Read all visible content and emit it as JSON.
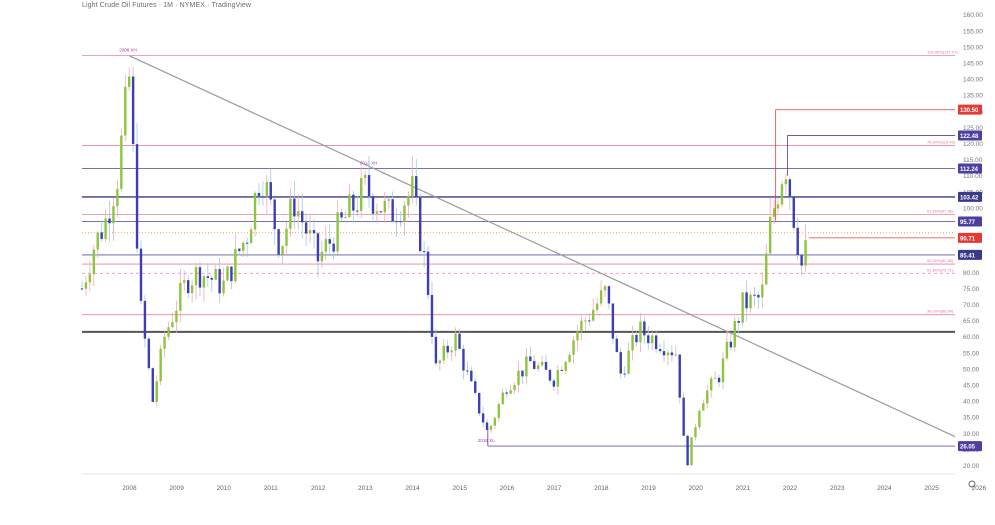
{
  "chart_data": {
    "type": "candlestick",
    "title": "Light Crude Oil Futures · 1M · NYMEX · TradingView",
    "y_range": [
      18,
      163
    ],
    "x_range": [
      2007.5,
      2026.0
    ],
    "y_ticks": [
      "20.00",
      "25.00",
      "30.00",
      "35.00",
      "40.00",
      "45.00",
      "50.00",
      "55.00",
      "60.00",
      "65.00",
      "70.00",
      "75.00",
      "80.00",
      "85.00",
      "90.00",
      "95.00",
      "100.00",
      "105.00",
      "110.00",
      "115.00",
      "120.00",
      "125.00",
      "130.00",
      "135.00",
      "140.00",
      "145.00",
      "150.00",
      "155.00",
      "160.00"
    ],
    "x_ticks": [
      "2008",
      "2009",
      "2010",
      "2011",
      "2012",
      "2013",
      "2014",
      "2015",
      "2016",
      "2017",
      "2018",
      "2019",
      "2020",
      "2021",
      "2022",
      "2023",
      "2024",
      "2025",
      "2026"
    ],
    "colors": {
      "up": "#8cc63f",
      "down": "#3d3db5",
      "fib": "#e8749a",
      "level": "#6a5acd",
      "trend": "#9a9a9a",
      "support": "#555555"
    },
    "fib_levels": [
      {
        "price": 147.27,
        "label": "100.00%(147.27)"
      },
      {
        "price": 119.4,
        "label": "78.60%(119.40)"
      },
      {
        "price": 97.96,
        "label": "61.80%(97.96)"
      },
      {
        "price": 82.56,
        "label": "50.00%(82.56)"
      },
      {
        "price": 79.71,
        "label": "61.80%(79.71)",
        "dashed": true
      },
      {
        "price": 66.84,
        "label": "38.20%(66.84)"
      }
    ],
    "price_levels": [
      {
        "price": 130.5,
        "label": "130.50",
        "color": "#e53935"
      },
      {
        "price": 122.48,
        "label": "122.48",
        "color": "#4b3fa0"
      },
      {
        "price": 112.24,
        "label": "112.24",
        "color": "#4b3fa0"
      },
      {
        "price": 103.42,
        "label": "103.42",
        "color": "#3a3a8a"
      },
      {
        "price": 95.77,
        "label": "95.77",
        "color": "#4b3fa0"
      },
      {
        "price": 90.71,
        "label": "90.71",
        "color": "#e53935"
      },
      {
        "price": 85.41,
        "label": "85.41",
        "color": "#3a3a8a"
      },
      {
        "price": 26.05,
        "label": "26.05",
        "color": "#4b3fa0"
      }
    ],
    "annotations": [
      {
        "x": 2008.5,
        "price": 147.3,
        "label": "2008 XH"
      },
      {
        "x": 2013.6,
        "price": 112.2,
        "label": "2013 XH"
      },
      {
        "x": 2016.1,
        "price": 26.05,
        "label": "2016 XL"
      }
    ],
    "trendline": {
      "x1": 2008.5,
      "y1": 147.27,
      "x2": 2026.0,
      "y2": 29.0
    },
    "support_line": {
      "price": 61.5
    },
    "candles_yearly_path": [
      {
        "year": 2007.5,
        "close": 75
      },
      {
        "year": 2007.75,
        "close": 88
      },
      {
        "year": 2008.0,
        "close": 96
      },
      {
        "year": 2008.25,
        "close": 110
      },
      {
        "year": 2008.5,
        "close": 140
      },
      {
        "year": 2008.75,
        "close": 68
      },
      {
        "year": 2009.0,
        "close": 40
      },
      {
        "year": 2009.25,
        "close": 60
      },
      {
        "year": 2009.5,
        "close": 70
      },
      {
        "year": 2009.75,
        "close": 78
      },
      {
        "year": 2010.0,
        "close": 80
      },
      {
        "year": 2010.5,
        "close": 76
      },
      {
        "year": 2011.0,
        "close": 92
      },
      {
        "year": 2011.3,
        "close": 112
      },
      {
        "year": 2011.7,
        "close": 88
      },
      {
        "year": 2012.0,
        "close": 102
      },
      {
        "year": 2012.5,
        "close": 84
      },
      {
        "year": 2013.0,
        "close": 95
      },
      {
        "year": 2013.5,
        "close": 106
      },
      {
        "year": 2014.0,
        "close": 98
      },
      {
        "year": 2014.5,
        "close": 105
      },
      {
        "year": 2014.8,
        "close": 80
      },
      {
        "year": 2015.0,
        "close": 50
      },
      {
        "year": 2015.4,
        "close": 60
      },
      {
        "year": 2015.8,
        "close": 42
      },
      {
        "year": 2016.1,
        "close": 30
      },
      {
        "year": 2016.5,
        "close": 45
      },
      {
        "year": 2017.0,
        "close": 52
      },
      {
        "year": 2017.5,
        "close": 47
      },
      {
        "year": 2018.0,
        "close": 62
      },
      {
        "year": 2018.6,
        "close": 74
      },
      {
        "year": 2018.9,
        "close": 48
      },
      {
        "year": 2019.3,
        "close": 62
      },
      {
        "year": 2019.8,
        "close": 58
      },
      {
        "year": 2020.1,
        "close": 55
      },
      {
        "year": 2020.3,
        "close": 19
      },
      {
        "year": 2020.6,
        "close": 40
      },
      {
        "year": 2021.0,
        "close": 48
      },
      {
        "year": 2021.5,
        "close": 70
      },
      {
        "year": 2021.9,
        "close": 72
      },
      {
        "year": 2022.1,
        "close": 96
      },
      {
        "year": 2022.4,
        "close": 115
      },
      {
        "year": 2022.6,
        "close": 96
      },
      {
        "year": 2022.75,
        "close": 82
      },
      {
        "year": 2022.9,
        "close": 90
      }
    ]
  }
}
